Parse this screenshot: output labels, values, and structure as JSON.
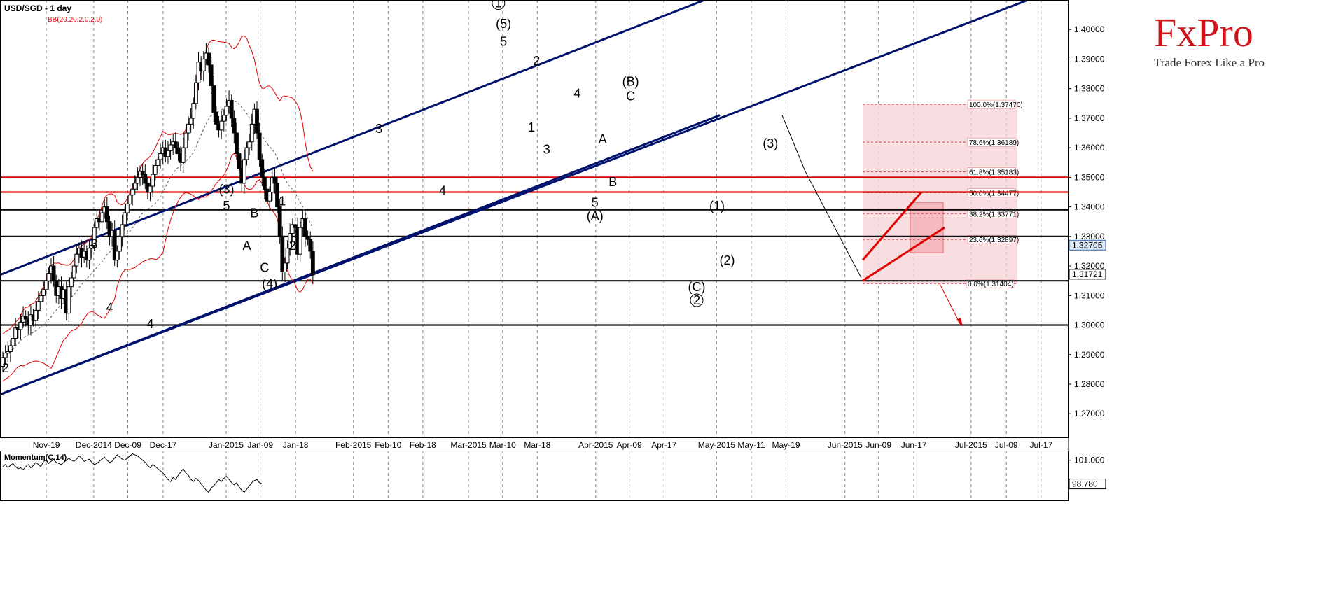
{
  "header": {
    "symbol_title": "USD/SGD - 1 day",
    "indicator": "BB(20,20,2.0,2.0)"
  },
  "logo": {
    "brand": "FxPro",
    "tagline": "Trade Forex Like a Pro"
  },
  "momentum": {
    "label": "Momentum(C,14)",
    "ticks": [
      "101.000",
      "98.780"
    ],
    "last_value": "98.780",
    "values": [
      100.4,
      100.6,
      100.3,
      100.5,
      100.7,
      100.4,
      100.2,
      100.3,
      100.1,
      100.4,
      100.6,
      100.3,
      100.5,
      100.8,
      100.6,
      100.4,
      100.9,
      101.0,
      100.7,
      100.9,
      101.1,
      100.8,
      100.7,
      100.6,
      100.8,
      101.0,
      101.2,
      101.0,
      100.9,
      101.1,
      101.4,
      101.2,
      100.9,
      101.0,
      101.1,
      100.8,
      100.6,
      100.7,
      100.9,
      101.1,
      101.3,
      101.0,
      100.8,
      100.9,
      101.2,
      101.5,
      101.3,
      101.1,
      101.0,
      101.2,
      101.4,
      101.6,
      101.5,
      101.4,
      101.2,
      101.0,
      100.8,
      100.5,
      100.3,
      100.6,
      100.4,
      100.2,
      100.0,
      99.8,
      99.5,
      99.2,
      99.0,
      99.4,
      99.2,
      99.6,
      99.9,
      100.2,
      99.8,
      99.6,
      99.2,
      99.0,
      99.3,
      99.1,
      98.8,
      98.5,
      98.2,
      98.0,
      98.4,
      98.6,
      98.9,
      99.2,
      99.0,
      99.3,
      99.5,
      99.2,
      98.9,
      98.7,
      98.9,
      98.5,
      98.2,
      98.0,
      98.3,
      98.6,
      98.9,
      99.1,
      99.2,
      98.9,
      98.8
    ]
  },
  "chart_data": {
    "type": "candlestick",
    "title": "USD/SGD - 1 day",
    "indicator": "BB(20,20,2.0,2.0)",
    "ylim": [
      1.262,
      1.41
    ],
    "y_ticks": [
      "1.40000",
      "1.39000",
      "1.38000",
      "1.37000",
      "1.36000",
      "1.35000",
      "1.34000",
      "1.33000",
      "1.32000",
      "1.31000",
      "1.30000",
      "1.29000",
      "1.28000",
      "1.27000"
    ],
    "x_ticks": [
      "Nov-19",
      "Dec-2014",
      "Dec-09",
      "Dec-17",
      "Jan-2015",
      "Jan-09",
      "Jan-18",
      "Feb-2015",
      "Feb-10",
      "Feb-18",
      "Mar-2015",
      "Mar-10",
      "Mar-18",
      "Apr-2015",
      "Apr-09",
      "Apr-17",
      "May-2015",
      "May-11",
      "May-19",
      "Jun-2015",
      "Jun-09",
      "Jun-17",
      "Jul-2015",
      "Jul-09",
      "Jul-17"
    ],
    "grid": true,
    "current_price": "1.32705",
    "marker_price": "1.31721",
    "closes": [
      1.289,
      1.2905,
      1.291,
      1.293,
      1.2955,
      1.299,
      1.2985,
      1.301,
      1.303,
      1.302,
      1.3,
      1.3035,
      1.3015,
      1.305,
      1.308,
      1.31,
      1.312,
      1.315,
      1.3175,
      1.32,
      1.315,
      1.31,
      1.313,
      1.309,
      1.312,
      1.304,
      1.313,
      1.316,
      1.32,
      1.324,
      1.326,
      1.323,
      1.325,
      1.322,
      1.326,
      1.327,
      1.333,
      1.336,
      1.335,
      1.338,
      1.34,
      1.335,
      1.33,
      1.332,
      1.322,
      1.325,
      1.33,
      1.334,
      1.338,
      1.341,
      1.344,
      1.346,
      1.348,
      1.35,
      1.352,
      1.351,
      1.348,
      1.345,
      1.347,
      1.351,
      1.354,
      1.356,
      1.358,
      1.36,
      1.357,
      1.359,
      1.361,
      1.362,
      1.36,
      1.358,
      1.355,
      1.36,
      1.365,
      1.368,
      1.37,
      1.375,
      1.382,
      1.389,
      1.386,
      1.39,
      1.392,
      1.388,
      1.381,
      1.372,
      1.368,
      1.366,
      1.369,
      1.371,
      1.374,
      1.376,
      1.37,
      1.365,
      1.358,
      1.353,
      1.348,
      1.356,
      1.36,
      1.362,
      1.368,
      1.373,
      1.365,
      1.356,
      1.35,
      1.346,
      1.342,
      1.345,
      1.35,
      1.348,
      1.34,
      1.33,
      1.318,
      1.321,
      1.326,
      1.331,
      1.334,
      1.333,
      1.324,
      1.333,
      1.336,
      1.33,
      1.329,
      1.325,
      1.317
    ],
    "series": [
      {
        "name": "Support 1.31500",
        "values": [
          1.315
        ]
      },
      {
        "name": "Support 1.30000",
        "values": [
          1.3
        ]
      },
      {
        "name": "Resistance 1.33000",
        "values": [
          1.33
        ]
      },
      {
        "name": "Resistance 1.33900",
        "values": [
          1.339
        ]
      },
      {
        "name": "Resistance 1.34500",
        "values": [
          1.345
        ]
      },
      {
        "name": "Resistance 1.35000",
        "values": [
          1.35
        ]
      }
    ],
    "fib_levels": [
      {
        "label": "100.0%(1.37470)",
        "value": 1.3747
      },
      {
        "label": "78.6%(1.36189)",
        "value": 1.36189
      },
      {
        "label": "61.8%(1.35183)",
        "value": 1.35183
      },
      {
        "label": "50.0%(1.34477)",
        "value": 1.34477
      },
      {
        "label": "38.2%(1.33771)",
        "value": 1.33771
      },
      {
        "label": "23.6%(1.32897)",
        "value": 1.32897
      },
      {
        "label": "0.0%(1.31404)",
        "value": 1.31404
      }
    ],
    "wave_labels": [
      {
        "text": "2",
        "x": 1,
        "y": 1.284
      },
      {
        "text": "3",
        "x": 36,
        "y": 1.326
      },
      {
        "text": "4",
        "x": 58,
        "y": 1.299
      },
      {
        "text": "4",
        "x": 42,
        "y": 1.3045
      },
      {
        "text": "(3)",
        "x": 88,
        "y": 1.3445
      },
      {
        "text": "5",
        "x": 88,
        "y": 1.339
      },
      {
        "text": "A",
        "x": 96,
        "y": 1.3255
      },
      {
        "text": "B",
        "x": 99,
        "y": 1.3365
      },
      {
        "text": "C",
        "x": 103,
        "y": 1.318
      },
      {
        "text": "(4)",
        "x": 105,
        "y": 1.3125
      },
      {
        "text": "1",
        "x": 110,
        "y": 1.3405
      },
      {
        "text": "2",
        "x": 114,
        "y": 1.3255
      },
      {
        "text": "3",
        "x": 148,
        "y": 1.365
      },
      {
        "text": "4",
        "x": 173,
        "y": 1.344
      },
      {
        "text": "1",
        "x": 195,
        "y": 1.4075
      },
      {
        "text": "(5)",
        "x": 197,
        "y": 1.4005
      },
      {
        "text": "5",
        "x": 197,
        "y": 1.3945
      },
      {
        "text": "2",
        "x": 210,
        "y": 1.388
      },
      {
        "text": "1",
        "x": 208,
        "y": 1.3655
      },
      {
        "text": "3",
        "x": 214,
        "y": 1.358
      },
      {
        "text": "4",
        "x": 226,
        "y": 1.377
      },
      {
        "text": "A",
        "x": 236,
        "y": 1.3615
      },
      {
        "text": "B",
        "x": 240,
        "y": 1.347
      },
      {
        "text": "5",
        "x": 233,
        "y": 1.34
      },
      {
        "text": "(A)",
        "x": 233,
        "y": 1.3355
      },
      {
        "text": "(B)",
        "x": 247,
        "y": 1.381
      },
      {
        "text": "C",
        "x": 247,
        "y": 1.376
      },
      {
        "text": "(1)",
        "x": 281,
        "y": 1.339
      },
      {
        "text": "(2)",
        "x": 285,
        "y": 1.3205
      },
      {
        "text": "(C)",
        "x": 273,
        "y": 1.3115
      },
      {
        "text": "2",
        "x": 273,
        "y": 1.307
      },
      {
        "text": "(3)",
        "x": 302,
        "y": 1.36
      }
    ]
  }
}
